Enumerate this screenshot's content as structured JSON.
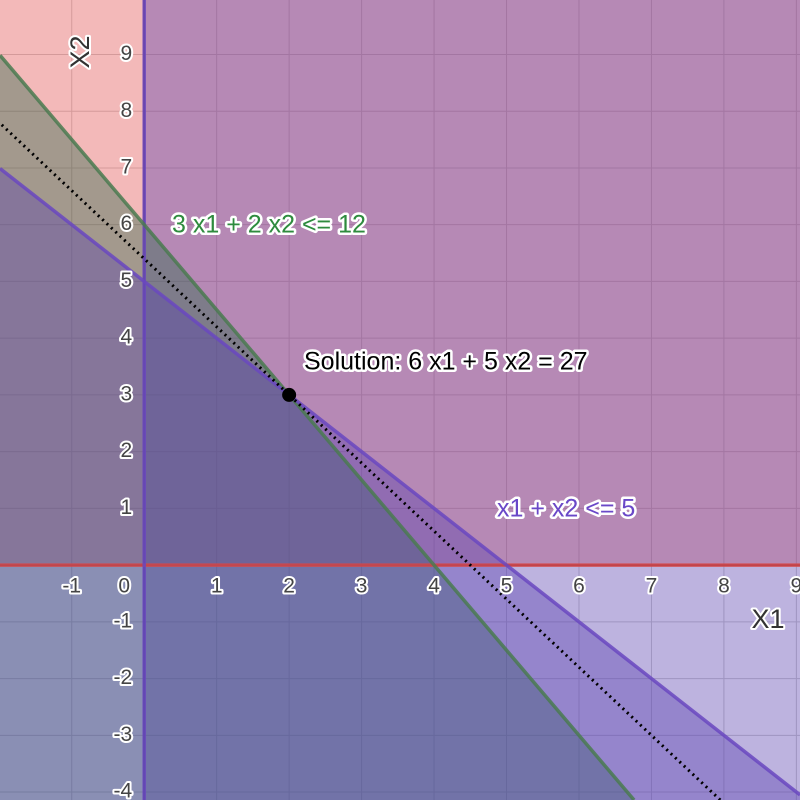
{
  "chart_data": {
    "type": "inequality",
    "xlabel": "X1",
    "ylabel": "X2",
    "xlim": [
      -1.99,
      9.05
    ],
    "ylim": [
      -4.14,
      9.96
    ],
    "xticks": [
      -1,
      0,
      1,
      2,
      3,
      4,
      5,
      6,
      7,
      8,
      9
    ],
    "yticks": [
      -4,
      -3,
      -2,
      -1,
      1,
      2,
      3,
      4,
      5,
      6,
      7,
      8,
      9
    ],
    "grid": true,
    "constraints": [
      {
        "coefficients": [
          0,
          1
        ],
        "sense": ">=",
        "bound": 0,
        "color": "#d84848",
        "fill": "#e05050"
      },
      {
        "coefficients": [
          1,
          0
        ],
        "sense": ">=",
        "bound": 0,
        "color": "#6a48c0",
        "fill": "#5a40b0"
      },
      {
        "label": "3 x1 + 2 x2 <= 12",
        "coefficients": [
          3,
          2
        ],
        "sense": "<=",
        "bound": 12,
        "color": "#4a7a50",
        "fill": "#2a6a4a"
      },
      {
        "label": "x1 + x2 <= 5",
        "coefficients": [
          1,
          1
        ],
        "sense": "<=",
        "bound": 5,
        "color": "#6a48c0",
        "fill": "#5a40b0"
      }
    ],
    "objective": {
      "label": "Solution: 6 x1 + 5 x2 = 27",
      "coefficients": [
        6,
        5
      ],
      "value": 27,
      "color": "#000000"
    },
    "solution": {
      "x": 2,
      "y": 3,
      "color": "#000000"
    }
  }
}
